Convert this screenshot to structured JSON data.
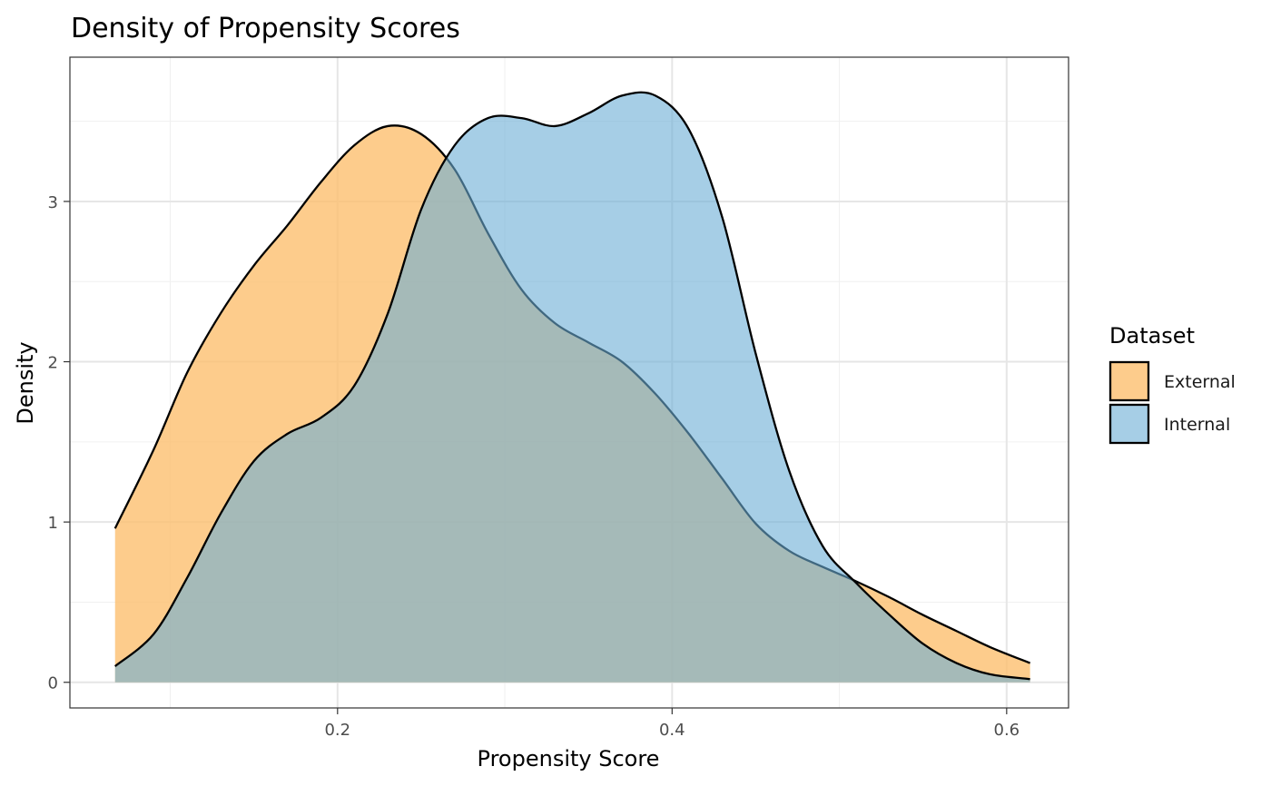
{
  "chart_data": {
    "type": "area",
    "title": "Density of Propensity Scores",
    "xlabel": "Propensity Score",
    "ylabel": "Density",
    "xlim": [
      0.04,
      0.637
    ],
    "ylim": [
      -0.16,
      3.9
    ],
    "x_ticks": [
      0.2,
      0.4,
      0.6
    ],
    "x_tick_labels": [
      "0.2",
      "0.4",
      "0.6"
    ],
    "y_ticks": [
      0,
      1,
      2,
      3
    ],
    "y_tick_labels": [
      "0",
      "1",
      "2",
      "3"
    ],
    "grid": true,
    "legend": {
      "title": "Dataset",
      "position": "right"
    },
    "series": [
      {
        "name": "External",
        "color": "#FDBF6F",
        "opacity": 0.8,
        "points": [
          [
            0.067,
            0.96
          ],
          [
            0.09,
            1.45
          ],
          [
            0.11,
            1.93
          ],
          [
            0.13,
            2.3
          ],
          [
            0.15,
            2.6
          ],
          [
            0.17,
            2.85
          ],
          [
            0.19,
            3.12
          ],
          [
            0.21,
            3.35
          ],
          [
            0.23,
            3.47
          ],
          [
            0.25,
            3.42
          ],
          [
            0.27,
            3.2
          ],
          [
            0.29,
            2.8
          ],
          [
            0.31,
            2.45
          ],
          [
            0.33,
            2.24
          ],
          [
            0.35,
            2.12
          ],
          [
            0.37,
            2.0
          ],
          [
            0.39,
            1.8
          ],
          [
            0.41,
            1.55
          ],
          [
            0.43,
            1.27
          ],
          [
            0.45,
            0.99
          ],
          [
            0.47,
            0.82
          ],
          [
            0.49,
            0.72
          ],
          [
            0.51,
            0.63
          ],
          [
            0.53,
            0.53
          ],
          [
            0.55,
            0.42
          ],
          [
            0.57,
            0.32
          ],
          [
            0.59,
            0.22
          ],
          [
            0.614,
            0.12
          ]
        ]
      },
      {
        "name": "Internal",
        "color": "#6BAED6",
        "opacity": 0.6,
        "points": [
          [
            0.067,
            0.1
          ],
          [
            0.09,
            0.3
          ],
          [
            0.11,
            0.65
          ],
          [
            0.13,
            1.05
          ],
          [
            0.15,
            1.38
          ],
          [
            0.17,
            1.55
          ],
          [
            0.19,
            1.65
          ],
          [
            0.21,
            1.85
          ],
          [
            0.23,
            2.3
          ],
          [
            0.25,
            2.95
          ],
          [
            0.27,
            3.35
          ],
          [
            0.29,
            3.52
          ],
          [
            0.31,
            3.52
          ],
          [
            0.33,
            3.47
          ],
          [
            0.35,
            3.55
          ],
          [
            0.37,
            3.66
          ],
          [
            0.39,
            3.66
          ],
          [
            0.41,
            3.45
          ],
          [
            0.43,
            2.9
          ],
          [
            0.45,
            2.05
          ],
          [
            0.47,
            1.32
          ],
          [
            0.49,
            0.85
          ],
          [
            0.51,
            0.62
          ],
          [
            0.53,
            0.42
          ],
          [
            0.55,
            0.24
          ],
          [
            0.57,
            0.12
          ],
          [
            0.59,
            0.05
          ],
          [
            0.614,
            0.02
          ]
        ]
      }
    ]
  }
}
